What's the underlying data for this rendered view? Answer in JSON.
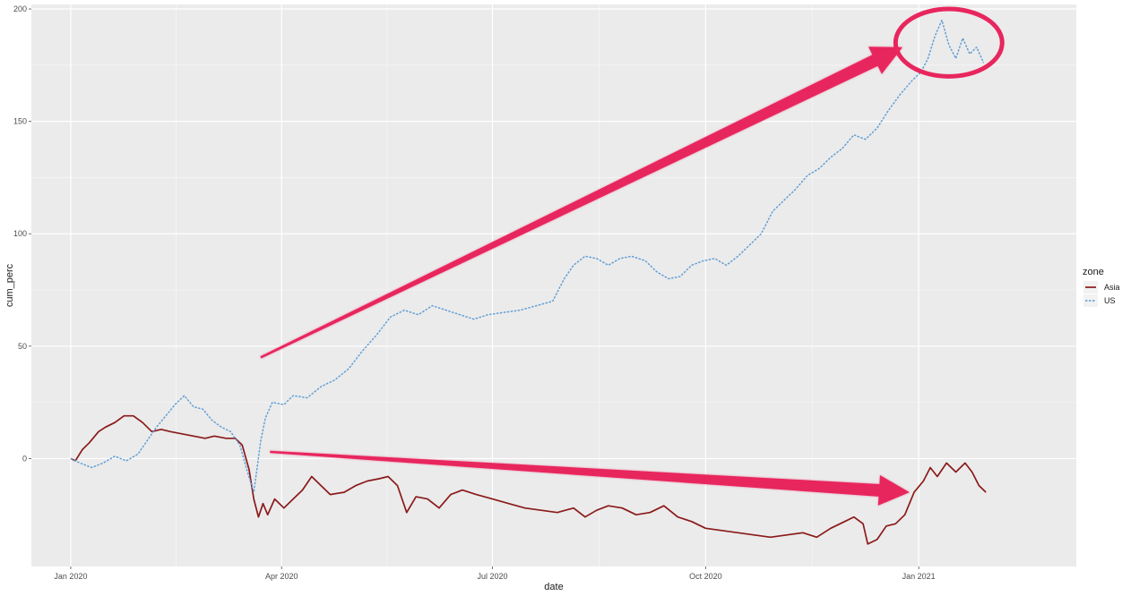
{
  "chart_data": {
    "type": "line",
    "xlabel": "date",
    "ylabel": "cum_perc",
    "x_ticks": [
      "Jan 2020",
      "Apr 2020",
      "Jul 2020",
      "Oct 2020",
      "Jan 2021"
    ],
    "y_ticks": [
      "0",
      "50",
      "100",
      "150",
      "200"
    ],
    "xlim": [
      "2019-12-15",
      "2021-03-10"
    ],
    "ylim": [
      -48,
      202
    ],
    "grid": true,
    "legend": {
      "title": "zone",
      "position": "right"
    },
    "series": [
      {
        "name": "Asia",
        "color": "#8b1a1a",
        "style": "solid",
        "points": [
          [
            "2020-01-01",
            0
          ],
          [
            "2020-01-03",
            -1
          ],
          [
            "2020-01-06",
            4
          ],
          [
            "2020-01-09",
            7
          ],
          [
            "2020-01-13",
            12
          ],
          [
            "2020-01-16",
            14
          ],
          [
            "2020-01-20",
            16
          ],
          [
            "2020-01-24",
            19
          ],
          [
            "2020-01-28",
            19
          ],
          [
            "2020-02-01",
            16
          ],
          [
            "2020-02-05",
            12
          ],
          [
            "2020-02-09",
            13
          ],
          [
            "2020-02-13",
            12
          ],
          [
            "2020-02-18",
            11
          ],
          [
            "2020-02-23",
            10
          ],
          [
            "2020-02-28",
            9
          ],
          [
            "2020-03-03",
            10
          ],
          [
            "2020-03-08",
            9
          ],
          [
            "2020-03-12",
            9
          ],
          [
            "2020-03-15",
            6
          ],
          [
            "2020-03-18",
            -5
          ],
          [
            "2020-03-20",
            -18
          ],
          [
            "2020-03-22",
            -26
          ],
          [
            "2020-03-24",
            -20
          ],
          [
            "2020-03-26",
            -25
          ],
          [
            "2020-03-29",
            -18
          ],
          [
            "2020-04-02",
            -22
          ],
          [
            "2020-04-06",
            -18
          ],
          [
            "2020-04-10",
            -14
          ],
          [
            "2020-04-14",
            -8
          ],
          [
            "2020-04-18",
            -12
          ],
          [
            "2020-04-22",
            -16
          ],
          [
            "2020-04-28",
            -15
          ],
          [
            "2020-05-03",
            -12
          ],
          [
            "2020-05-08",
            -10
          ],
          [
            "2020-05-13",
            -9
          ],
          [
            "2020-05-17",
            -8
          ],
          [
            "2020-05-21",
            -12
          ],
          [
            "2020-05-25",
            -24
          ],
          [
            "2020-05-29",
            -17
          ],
          [
            "2020-06-03",
            -18
          ],
          [
            "2020-06-08",
            -22
          ],
          [
            "2020-06-13",
            -16
          ],
          [
            "2020-06-18",
            -14
          ],
          [
            "2020-06-24",
            -16
          ],
          [
            "2020-07-01",
            -18
          ],
          [
            "2020-07-08",
            -20
          ],
          [
            "2020-07-15",
            -22
          ],
          [
            "2020-07-22",
            -23
          ],
          [
            "2020-07-29",
            -24
          ],
          [
            "2020-08-05",
            -22
          ],
          [
            "2020-08-10",
            -26
          ],
          [
            "2020-08-15",
            -23
          ],
          [
            "2020-08-20",
            -21
          ],
          [
            "2020-08-26",
            -22
          ],
          [
            "2020-09-01",
            -25
          ],
          [
            "2020-09-07",
            -24
          ],
          [
            "2020-09-13",
            -21
          ],
          [
            "2020-09-19",
            -26
          ],
          [
            "2020-09-25",
            -28
          ],
          [
            "2020-10-01",
            -31
          ],
          [
            "2020-10-08",
            -32
          ],
          [
            "2020-10-15",
            -33
          ],
          [
            "2020-10-22",
            -34
          ],
          [
            "2020-10-29",
            -35
          ],
          [
            "2020-11-05",
            -34
          ],
          [
            "2020-11-12",
            -33
          ],
          [
            "2020-11-18",
            -35
          ],
          [
            "2020-11-24",
            -31
          ],
          [
            "2020-11-30",
            -28
          ],
          [
            "2020-12-04",
            -26
          ],
          [
            "2020-12-08",
            -29
          ],
          [
            "2020-12-10",
            -38
          ],
          [
            "2020-12-14",
            -36
          ],
          [
            "2020-12-18",
            -30
          ],
          [
            "2020-12-22",
            -29
          ],
          [
            "2020-12-26",
            -25
          ],
          [
            "2020-12-30",
            -15
          ],
          [
            "2021-01-03",
            -10
          ],
          [
            "2021-01-06",
            -4
          ],
          [
            "2021-01-09",
            -8
          ],
          [
            "2021-01-13",
            -2
          ],
          [
            "2021-01-17",
            -6
          ],
          [
            "2021-01-21",
            -2
          ],
          [
            "2021-01-24",
            -6
          ],
          [
            "2021-01-27",
            -12
          ],
          [
            "2021-01-30",
            -15
          ]
        ]
      },
      {
        "name": "US",
        "color": "#5b9bd5",
        "style": "dotted",
        "points": [
          [
            "2020-01-01",
            0
          ],
          [
            "2020-01-05",
            -2
          ],
          [
            "2020-01-10",
            -4
          ],
          [
            "2020-01-15",
            -2
          ],
          [
            "2020-01-20",
            1
          ],
          [
            "2020-01-25",
            -1
          ],
          [
            "2020-01-30",
            2
          ],
          [
            "2020-02-03",
            8
          ],
          [
            "2020-02-07",
            14
          ],
          [
            "2020-02-11",
            19
          ],
          [
            "2020-02-15",
            24
          ],
          [
            "2020-02-19",
            28
          ],
          [
            "2020-02-23",
            23
          ],
          [
            "2020-02-27",
            22
          ],
          [
            "2020-03-02",
            17
          ],
          [
            "2020-03-06",
            14
          ],
          [
            "2020-03-10",
            12
          ],
          [
            "2020-03-14",
            6
          ],
          [
            "2020-03-17",
            -5
          ],
          [
            "2020-03-20",
            -15
          ],
          [
            "2020-03-23",
            8
          ],
          [
            "2020-03-25",
            18
          ],
          [
            "2020-03-28",
            25
          ],
          [
            "2020-04-02",
            24
          ],
          [
            "2020-04-06",
            28
          ],
          [
            "2020-04-12",
            27
          ],
          [
            "2020-04-18",
            32
          ],
          [
            "2020-04-24",
            35
          ],
          [
            "2020-04-30",
            40
          ],
          [
            "2020-05-06",
            48
          ],
          [
            "2020-05-12",
            55
          ],
          [
            "2020-05-18",
            63
          ],
          [
            "2020-05-24",
            66
          ],
          [
            "2020-05-30",
            64
          ],
          [
            "2020-06-05",
            68
          ],
          [
            "2020-06-11",
            66
          ],
          [
            "2020-06-17",
            64
          ],
          [
            "2020-06-23",
            62
          ],
          [
            "2020-06-29",
            64
          ],
          [
            "2020-07-06",
            65
          ],
          [
            "2020-07-13",
            66
          ],
          [
            "2020-07-20",
            68
          ],
          [
            "2020-07-27",
            70
          ],
          [
            "2020-08-01",
            80
          ],
          [
            "2020-08-05",
            86
          ],
          [
            "2020-08-10",
            90
          ],
          [
            "2020-08-15",
            89
          ],
          [
            "2020-08-20",
            86
          ],
          [
            "2020-08-25",
            89
          ],
          [
            "2020-08-30",
            90
          ],
          [
            "2020-09-05",
            88
          ],
          [
            "2020-09-10",
            83
          ],
          [
            "2020-09-15",
            80
          ],
          [
            "2020-09-20",
            81
          ],
          [
            "2020-09-25",
            86
          ],
          [
            "2020-09-30",
            88
          ],
          [
            "2020-10-05",
            89
          ],
          [
            "2020-10-10",
            86
          ],
          [
            "2020-10-15",
            90
          ],
          [
            "2020-10-20",
            95
          ],
          [
            "2020-10-25",
            100
          ],
          [
            "2020-10-30",
            110
          ],
          [
            "2020-11-04",
            115
          ],
          [
            "2020-11-09",
            120
          ],
          [
            "2020-11-14",
            126
          ],
          [
            "2020-11-19",
            129
          ],
          [
            "2020-11-24",
            134
          ],
          [
            "2020-11-29",
            138
          ],
          [
            "2020-12-04",
            144
          ],
          [
            "2020-12-09",
            142
          ],
          [
            "2020-12-14",
            147
          ],
          [
            "2020-12-19",
            155
          ],
          [
            "2020-12-24",
            162
          ],
          [
            "2020-12-29",
            168
          ],
          [
            "2021-01-02",
            172
          ],
          [
            "2021-01-05",
            178
          ],
          [
            "2021-01-08",
            188
          ],
          [
            "2021-01-11",
            195
          ],
          [
            "2021-01-14",
            184
          ],
          [
            "2021-01-17",
            178
          ],
          [
            "2021-01-20",
            187
          ],
          [
            "2021-01-23",
            180
          ],
          [
            "2021-01-26",
            183
          ],
          [
            "2021-01-29",
            176
          ]
        ]
      }
    ]
  },
  "annotations": {
    "arrow_color": "#e8265e",
    "arrows": [
      {
        "from": [
          "2020-03-23",
          45
        ],
        "to": [
          "2020-12-25",
          183
        ]
      },
      {
        "from": [
          "2020-03-27",
          3
        ],
        "to": [
          "2020-12-28",
          -15
        ]
      }
    ],
    "highlight_ellipse": {
      "center": [
        "2021-01-14",
        185
      ],
      "rx_days": 23,
      "ry": 15
    }
  }
}
